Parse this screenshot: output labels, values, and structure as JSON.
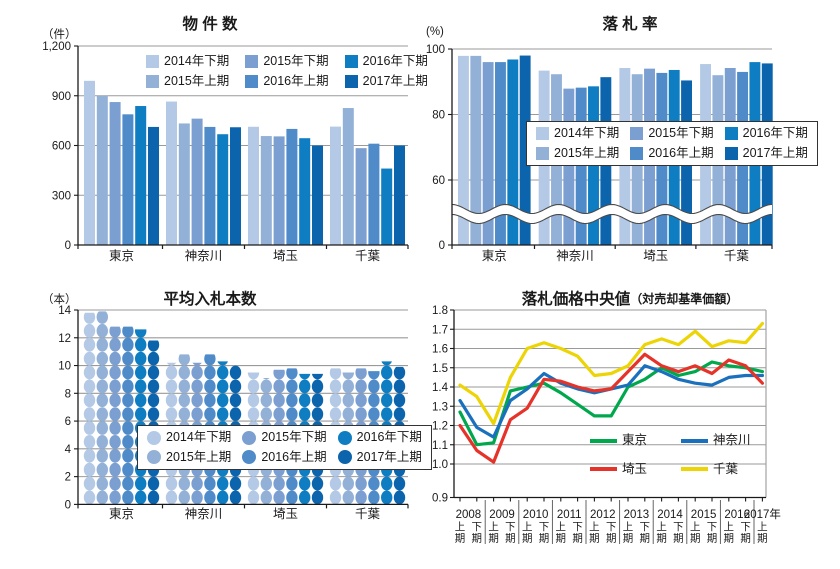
{
  "figure": {
    "background": "#ffffff",
    "text_color": "#1a1a1a",
    "grid_color": "#9a9a9a",
    "axis_color": "#1a1a1a"
  },
  "prefectures": [
    "東京",
    "神奈川",
    "埼玉",
    "千葉"
  ],
  "period_legend": [
    "2014年下期",
    "2015年上期",
    "2015年下期",
    "2016年上期",
    "2016年下期",
    "2017年上期"
  ],
  "period_colors": [
    "#b3c9e5",
    "#93b1d7",
    "#7b9fd0",
    "#4f8bc9",
    "#0e7dc2",
    "#0c64ad"
  ],
  "chart_data": [
    {
      "type": "bar",
      "title": "物 件 数",
      "unit": "（件）",
      "categories": [
        "東京",
        "神奈川",
        "埼玉",
        "千葉"
      ],
      "ylim": [
        0,
        1200
      ],
      "ytick_values": [
        0,
        300,
        600,
        900,
        1200
      ],
      "ytick_labels": [
        "0",
        "300",
        "600",
        "900",
        "1,200"
      ],
      "grid": "horizontal",
      "legend_position": "top-inside",
      "series": [
        {
          "name": "2014年下期",
          "color": "#b3c9e5",
          "values": [
            990,
            865,
            713,
            714
          ]
        },
        {
          "name": "2015年上期",
          "color": "#93b1d7",
          "values": [
            900,
            733,
            657,
            826
          ]
        },
        {
          "name": "2015年下期",
          "color": "#7b9fd0",
          "values": [
            862,
            762,
            655,
            584
          ]
        },
        {
          "name": "2016年上期",
          "color": "#4f8bc9",
          "values": [
            788,
            712,
            700,
            611
          ]
        },
        {
          "name": "2016年下期",
          "color": "#0e7dc2",
          "values": [
            838,
            668,
            644,
            461
          ]
        },
        {
          "name": "2017年上期",
          "color": "#0c64ad",
          "values": [
            712,
            710,
            600,
            600
          ]
        }
      ]
    },
    {
      "type": "bar",
      "title": "落 札 率",
      "unit": "(%)",
      "categories": [
        "東京",
        "神奈川",
        "埼玉",
        "千葉"
      ],
      "ylim": [
        0,
        100
      ],
      "axis_break": "wavy white band across bars between 0 and 60",
      "ytick_values": [
        0,
        60,
        80,
        100
      ],
      "ytick_labels": [
        "0",
        "60",
        "80",
        "100"
      ],
      "grid": "horizontal",
      "legend_position": "middle-inside-boxed",
      "series": [
        {
          "name": "2014年下期",
          "color": "#b3c9e5",
          "values": [
            97.9,
            93.4,
            94.2,
            95.4
          ]
        },
        {
          "name": "2015年上期",
          "color": "#93b1d7",
          "values": [
            97.9,
            92.3,
            92.3,
            92.0
          ]
        },
        {
          "name": "2015年下期",
          "color": "#7b9fd0",
          "values": [
            96.0,
            87.9,
            94.0,
            94.2
          ]
        },
        {
          "name": "2016年上期",
          "color": "#4f8bc9",
          "values": [
            96.0,
            88.2,
            92.7,
            93.0
          ]
        },
        {
          "name": "2016年下期",
          "color": "#0e7dc2",
          "values": [
            96.8,
            88.6,
            93.6,
            96.0
          ]
        },
        {
          "name": "2017年上期",
          "color": "#0c64ad",
          "values": [
            98.0,
            91.4,
            90.4,
            95.6
          ]
        }
      ]
    },
    {
      "type": "bar",
      "style": "stacked-circle-pictograph",
      "title": "平均入札本数",
      "unit": "（本）",
      "categories": [
        "東京",
        "神奈川",
        "埼玉",
        "千葉"
      ],
      "ylim": [
        0,
        14
      ],
      "ytick_values": [
        0,
        2,
        4,
        6,
        8,
        10,
        12,
        14
      ],
      "ytick_labels": [
        "0",
        "2",
        "4",
        "6",
        "8",
        "10",
        "12",
        "14"
      ],
      "grid": "horizontal",
      "legend_position": "middle-inside-boxed",
      "series": [
        {
          "name": "2014年下期",
          "color": "#b3c9e5",
          "values": [
            13.8,
            10.2,
            9.5,
            9.8
          ]
        },
        {
          "name": "2015年上期",
          "color": "#93b1d7",
          "values": [
            13.9,
            10.8,
            9.1,
            9.5
          ]
        },
        {
          "name": "2015年下期",
          "color": "#7b9fd0",
          "values": [
            12.8,
            10.2,
            9.7,
            9.8
          ]
        },
        {
          "name": "2016年上期",
          "color": "#4f8bc9",
          "values": [
            12.8,
            10.8,
            9.8,
            9.6
          ]
        },
        {
          "name": "2016年下期",
          "color": "#0e7dc2",
          "values": [
            12.6,
            10.3,
            9.4,
            10.3
          ]
        },
        {
          "name": "2017年上期",
          "color": "#0c64ad",
          "values": [
            11.8,
            10.0,
            9.4,
            9.9
          ]
        }
      ]
    },
    {
      "type": "line",
      "title": "落札価格中央値",
      "subtitle": "（対売却基準価額）",
      "ylim": [
        0.9,
        1.8
      ],
      "ytick_labels": [
        "0.9",
        "1.0",
        "1.1",
        "1.2",
        "1.3",
        "1.4",
        "1.5",
        "1.6",
        "1.7",
        "1.8"
      ],
      "grid": "horizontal",
      "legend_position": "bottom-right-inside",
      "x_years": [
        {
          "year": "2008",
          "halves": [
            "上期",
            "下期"
          ]
        },
        {
          "year": "2009",
          "halves": [
            "上期",
            "下期"
          ]
        },
        {
          "year": "2010",
          "halves": [
            "上期",
            "下期"
          ]
        },
        {
          "year": "2011",
          "halves": [
            "上期",
            "下期"
          ]
        },
        {
          "year": "2012",
          "halves": [
            "上期",
            "下期"
          ]
        },
        {
          "year": "2013",
          "halves": [
            "上期",
            "下期"
          ]
        },
        {
          "year": "2014",
          "halves": [
            "上期",
            "下期"
          ]
        },
        {
          "year": "2015",
          "halves": [
            "上期",
            "下期"
          ]
        },
        {
          "year": "2016",
          "halves": [
            "上期",
            "下期"
          ]
        },
        {
          "year": "2017年",
          "halves": [
            "上期"
          ]
        }
      ],
      "series": [
        {
          "name": "東京",
          "color": "#00a84d",
          "values": [
            1.27,
            1.1,
            1.11,
            1.38,
            1.4,
            1.42,
            1.37,
            1.31,
            1.25,
            1.25,
            1.4,
            1.44,
            1.5,
            1.46,
            1.48,
            1.53,
            1.51,
            1.5,
            1.48
          ]
        },
        {
          "name": "神奈川",
          "color": "#1a70bd",
          "values": [
            1.33,
            1.19,
            1.14,
            1.33,
            1.39,
            1.47,
            1.42,
            1.39,
            1.37,
            1.39,
            1.41,
            1.51,
            1.48,
            1.44,
            1.42,
            1.41,
            1.45,
            1.46,
            1.46
          ]
        },
        {
          "name": "埼玉",
          "color": "#e6332a",
          "values": [
            1.2,
            1.07,
            1.01,
            1.23,
            1.29,
            1.44,
            1.43,
            1.4,
            1.38,
            1.39,
            1.48,
            1.57,
            1.51,
            1.48,
            1.51,
            1.47,
            1.54,
            1.51,
            1.42
          ]
        },
        {
          "name": "千葉",
          "color": "#ecd405",
          "values": [
            1.41,
            1.35,
            1.21,
            1.45,
            1.6,
            1.63,
            1.6,
            1.56,
            1.46,
            1.47,
            1.51,
            1.62,
            1.65,
            1.62,
            1.69,
            1.61,
            1.64,
            1.63,
            1.73
          ]
        }
      ]
    }
  ]
}
